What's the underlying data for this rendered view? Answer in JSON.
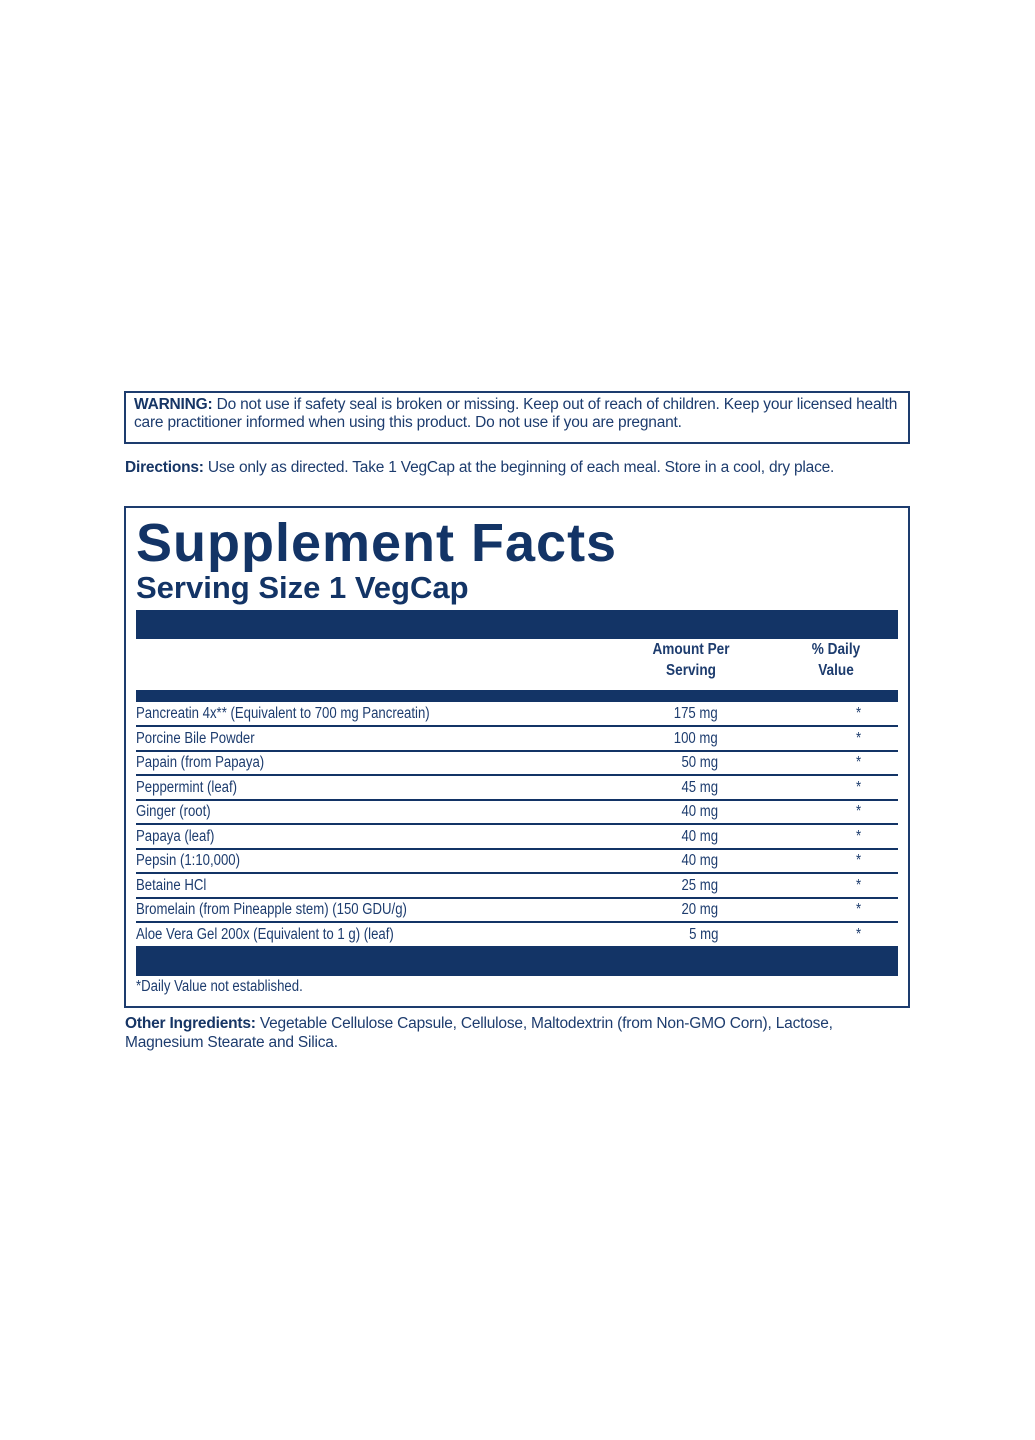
{
  "warning": {
    "label": "WARNING:",
    "text": " Do not use if safety seal is broken or missing. Keep out of reach of children. Keep your licensed health care practitioner informed when using this product. Do not use if you are pregnant."
  },
  "directions": {
    "label": "Directions:",
    "text": " Use only as directed. Take 1 VegCap at the beginning of each meal. Store in a cool, dry place."
  },
  "facts": {
    "title": "Supplement Facts",
    "serving_size": "Serving Size 1 VegCap",
    "col_amount": "Amount Per Serving",
    "col_dv": "% Daily Value",
    "rows": [
      {
        "name": "Pancreatin 4x** (Equivalent to 700 mg Pancreatin)",
        "amount": "175 mg",
        "dv": "*"
      },
      {
        "name": "Porcine Bile Powder",
        "amount": "100 mg",
        "dv": "*"
      },
      {
        "name": "Papain (from Papaya)",
        "amount": "50 mg",
        "dv": "*"
      },
      {
        "name": "Peppermint (leaf)",
        "amount": "45 mg",
        "dv": "*"
      },
      {
        "name": "Ginger (root)",
        "amount": "40 mg",
        "dv": "*"
      },
      {
        "name": "Papaya (leaf)",
        "amount": "40 mg",
        "dv": "*"
      },
      {
        "name": "Pepsin (1:10,000)",
        "amount": "40 mg",
        "dv": "*"
      },
      {
        "name": "Betaine HCl",
        "amount": "25 mg",
        "dv": "*"
      },
      {
        "name": "Bromelain (from Pineapple stem) (150 GDU/g)",
        "amount": "20 mg",
        "dv": "*"
      },
      {
        "name": "Aloe Vera Gel 200x (Equivalent to 1 g) (leaf)",
        "amount": "5 mg",
        "dv": "*"
      }
    ],
    "footnote": "*Daily Value not established."
  },
  "other": {
    "label": "Other Ingredients:",
    "text": " Vegetable Cellulose Capsule, Cellulose, Maltodextrin (from Non-GMO Corn), Lactose, Magnesium Stearate and Silica."
  },
  "colors": {
    "navy": "#133466"
  }
}
